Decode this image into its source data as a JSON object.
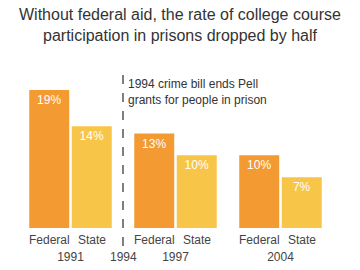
{
  "chart_data": {
    "type": "bar",
    "title": [
      "Without federal aid, the rate of college course",
      "participation in prisons dropped by half"
    ],
    "categories": [
      "1991",
      "1997",
      "2004"
    ],
    "series": [
      {
        "name": "Federal",
        "color": "#f39a33",
        "values": [
          19,
          13,
          10
        ],
        "value_labels": [
          "19%",
          "13%",
          "10%"
        ]
      },
      {
        "name": "State",
        "color": "#f7c548",
        "values": [
          14,
          10,
          7
        ],
        "value_labels": [
          "14%",
          "10%",
          "7%"
        ]
      }
    ],
    "ylim": [
      0,
      19
    ],
    "grid": false,
    "data_labels": true,
    "tick_labels": "x",
    "annotations": [
      {
        "lines": [
          "1994 crime bill ends Pell",
          "grants for people in prison"
        ],
        "marker_label": "1994",
        "between": [
          "1991",
          "1997"
        ]
      }
    ]
  }
}
